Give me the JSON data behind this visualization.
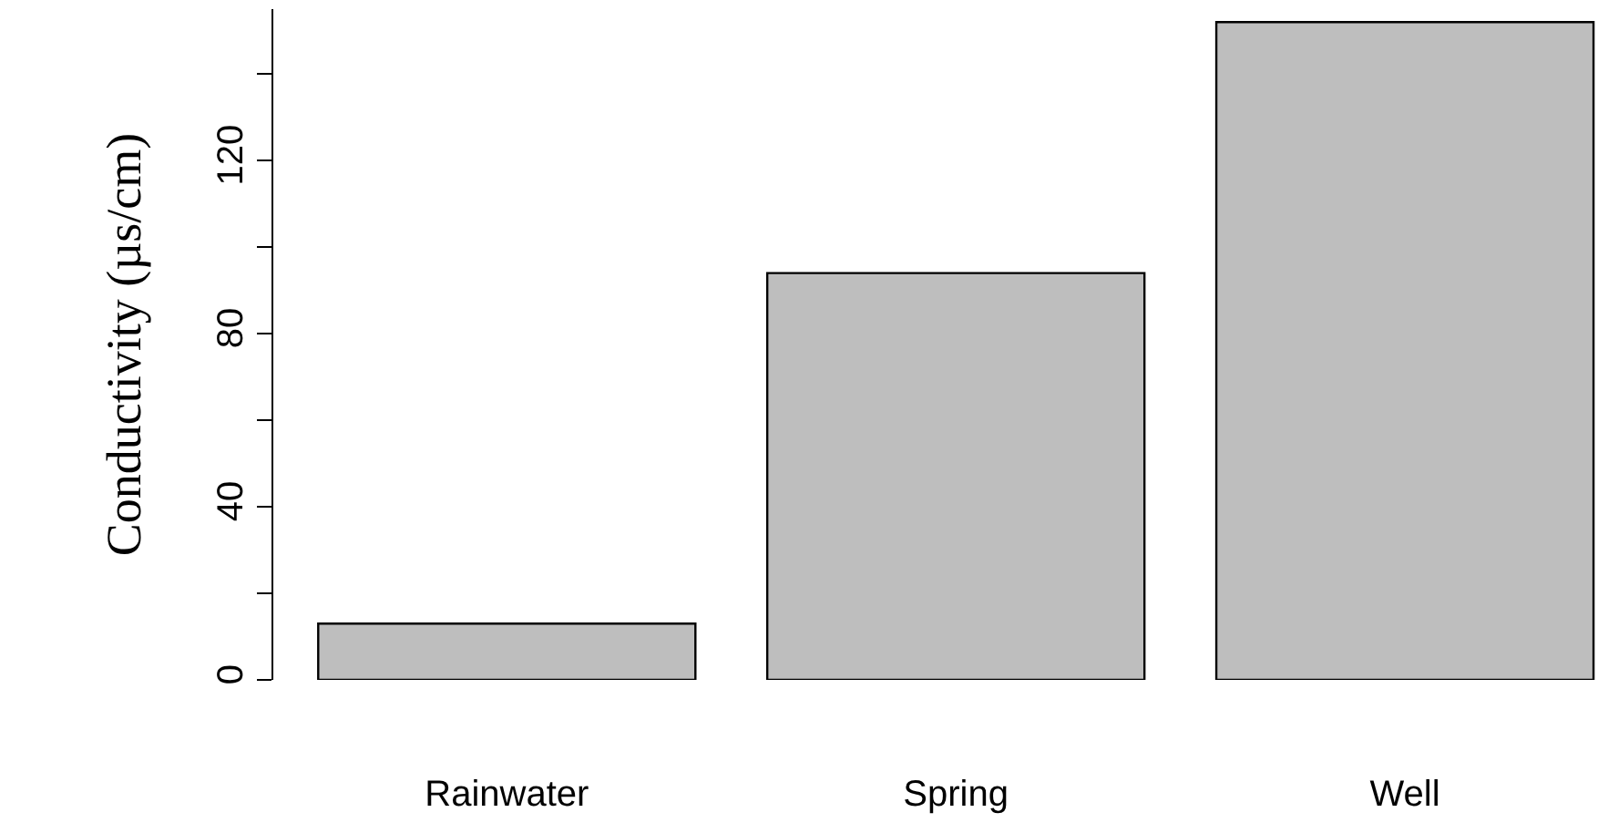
{
  "chart_data": {
    "type": "bar",
    "ylabel": "Conductivity (µs/cm)",
    "categories": [
      "Rainwater",
      "Spring",
      "Well"
    ],
    "values": [
      13,
      94,
      152
    ],
    "color": "#bebebe",
    "ylim": [
      0,
      155
    ],
    "yticks": [
      0,
      {
        "value": 20,
        "label": null
      },
      40,
      {
        "value": 60,
        "label": null
      },
      80,
      {
        "value": 100,
        "label": null
      },
      120,
      {
        "value": 140,
        "label": null
      }
    ],
    "legend": false
  }
}
